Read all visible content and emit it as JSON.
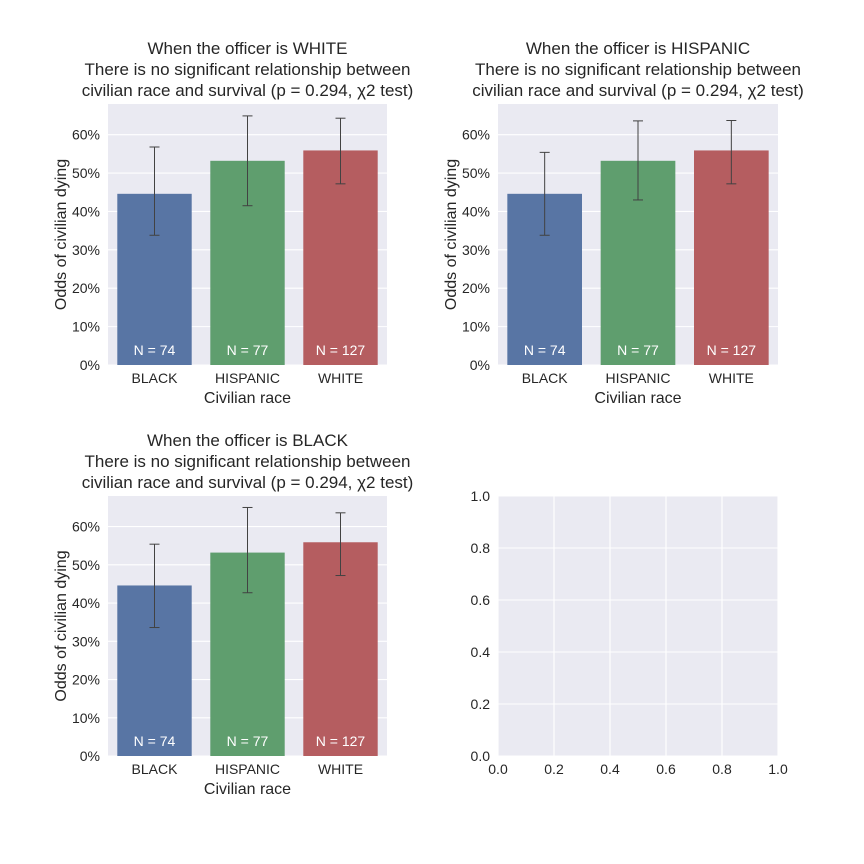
{
  "chart_data": [
    {
      "type": "bar",
      "title_lines": [
        "When the officer is WHITE",
        "There is no significant relationship between",
        "civilian race and survival (p = 0.294, χ2 test)"
      ],
      "xlabel": "Civilian race",
      "ylabel": "Odds of civilian dying",
      "categories": [
        "BLACK",
        "HISPANIC",
        "WHITE"
      ],
      "values": [
        0.446,
        0.532,
        0.559
      ],
      "error_low": [
        0.338,
        0.415,
        0.472
      ],
      "error_high": [
        0.568,
        0.649,
        0.643
      ],
      "annotations": [
        "N = 74",
        "N = 77",
        "N = 127"
      ],
      "colors": [
        "#5875a4",
        "#5f9e6e",
        "#b55d60"
      ],
      "ylim": [
        0,
        0.68
      ],
      "yticks": [
        0,
        0.1,
        0.2,
        0.3,
        0.4,
        0.5,
        0.6
      ],
      "ytick_labels": [
        "0%",
        "10%",
        "20%",
        "30%",
        "40%",
        "50%",
        "60%"
      ],
      "grid": true
    },
    {
      "type": "bar",
      "title_lines": [
        "When the officer is HISPANIC",
        "There is no significant relationship between",
        "civilian race and survival (p = 0.294, χ2 test)"
      ],
      "xlabel": "Civilian race",
      "ylabel": "Odds of civilian dying",
      "categories": [
        "BLACK",
        "HISPANIC",
        "WHITE"
      ],
      "values": [
        0.446,
        0.532,
        0.559
      ],
      "error_low": [
        0.338,
        0.43,
        0.472
      ],
      "error_high": [
        0.554,
        0.636,
        0.637
      ],
      "annotations": [
        "N = 74",
        "N = 77",
        "N = 127"
      ],
      "colors": [
        "#5875a4",
        "#5f9e6e",
        "#b55d60"
      ],
      "ylim": [
        0,
        0.68
      ],
      "yticks": [
        0,
        0.1,
        0.2,
        0.3,
        0.4,
        0.5,
        0.6
      ],
      "ytick_labels": [
        "0%",
        "10%",
        "20%",
        "30%",
        "40%",
        "50%",
        "60%"
      ],
      "grid": true
    },
    {
      "type": "bar",
      "title_lines": [
        "When the officer is BLACK",
        "There is no significant relationship between",
        "civilian race and survival (p = 0.294, χ2 test)"
      ],
      "xlabel": "Civilian race",
      "ylabel": "Odds of civilian dying",
      "categories": [
        "BLACK",
        "HISPANIC",
        "WHITE"
      ],
      "values": [
        0.446,
        0.532,
        0.559
      ],
      "error_low": [
        0.336,
        0.427,
        0.472
      ],
      "error_high": [
        0.554,
        0.65,
        0.636
      ],
      "annotations": [
        "N = 74",
        "N = 77",
        "N = 127"
      ],
      "colors": [
        "#5875a4",
        "#5f9e6e",
        "#b55d60"
      ],
      "ylim": [
        0,
        0.68
      ],
      "yticks": [
        0,
        0.1,
        0.2,
        0.3,
        0.4,
        0.5,
        0.6
      ],
      "ytick_labels": [
        "0%",
        "10%",
        "20%",
        "30%",
        "40%",
        "50%",
        "60%"
      ],
      "grid": true
    },
    {
      "type": "scatter",
      "empty": true,
      "xlim": [
        0,
        1
      ],
      "ylim": [
        0,
        1
      ],
      "xticks": [
        0,
        0.2,
        0.4,
        0.6,
        0.8,
        1.0
      ],
      "yticks": [
        0,
        0.2,
        0.4,
        0.6,
        0.8,
        1.0
      ],
      "xtick_labels": [
        "0.0",
        "0.2",
        "0.4",
        "0.6",
        "0.8",
        "1.0"
      ],
      "ytick_labels": [
        "0.0",
        "0.2",
        "0.4",
        "0.6",
        "0.8",
        "1.0"
      ],
      "grid": true
    }
  ],
  "style": {
    "axes_background": "#eaeaf2",
    "grid_color": "#ffffff",
    "text_color": "#262626",
    "errorbar_color": "#424242",
    "bar_label_color": "#ffffff"
  }
}
